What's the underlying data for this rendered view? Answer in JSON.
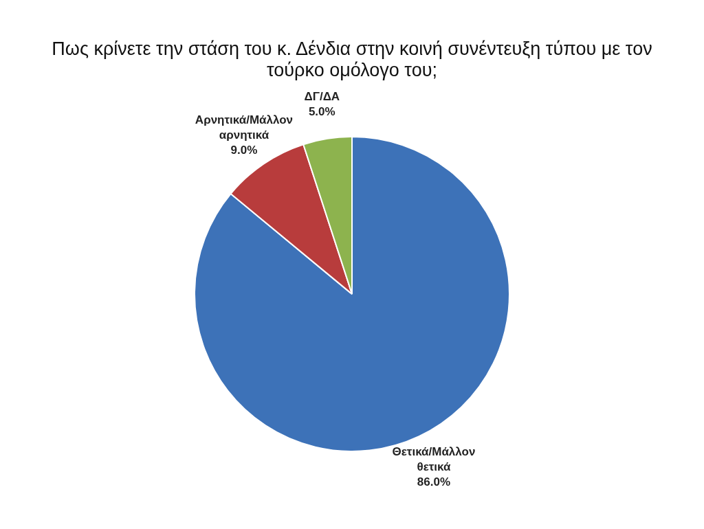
{
  "chart_data": {
    "type": "pie",
    "title": "Πως κρίνετε την στάση του κ. Δένδια στην κοινή συνέντευξη τύπου με τον τούρκο ομόλογο του;",
    "categories": [
      "Θετικά/Μάλλον θετικά",
      "Αρνητικά/Μάλλον αρνητικά",
      "ΔΓ/ΔΑ"
    ],
    "values": [
      86,
      9,
      5
    ],
    "colors": [
      "#3d72b8",
      "#b83c3c",
      "#8db34e"
    ],
    "value_labels": [
      "86.0%",
      "9.0%",
      "5.0%"
    ],
    "legend": false
  }
}
